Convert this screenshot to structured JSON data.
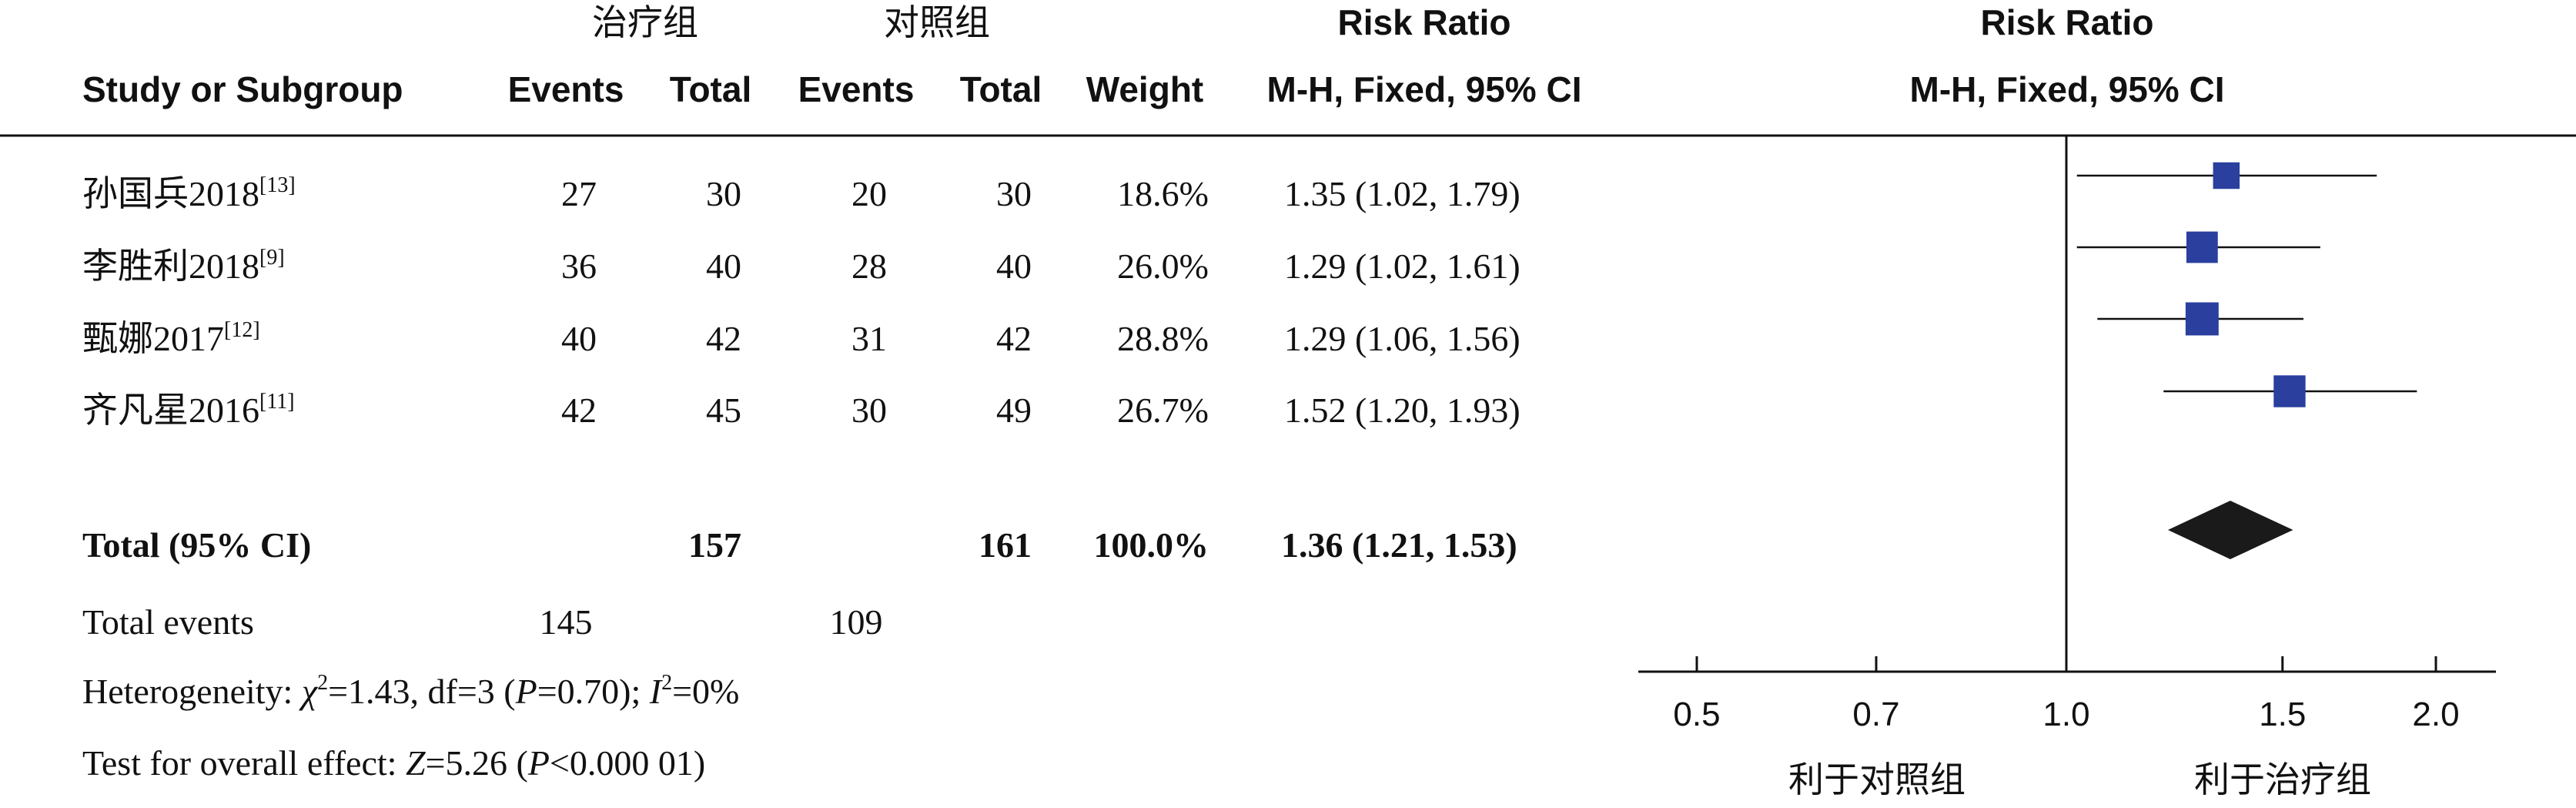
{
  "headers": {
    "group_treat": "治疗组",
    "group_control": "对照组",
    "risk_ratio_left": "Risk Ratio",
    "risk_ratio_right": "Risk Ratio",
    "study": "Study or Subgroup",
    "events1": "Events",
    "total1": "Total",
    "events2": "Events",
    "total2": "Total",
    "weight": "Weight",
    "method_left": "M-H, Fixed, 95% CI",
    "method_right": "M-H, Fixed, 95% CI"
  },
  "studies": [
    {
      "name": "孙国兵2018",
      "ref": "[13]",
      "e1": "27",
      "t1": "30",
      "e2": "20",
      "t2": "30",
      "weight": "18.6%",
      "ci_text": "1.35 (1.02, 1.79)"
    },
    {
      "name": "李胜利2018",
      "ref": "[9]",
      "e1": "36",
      "t1": "40",
      "e2": "28",
      "t2": "40",
      "weight": "26.0%",
      "ci_text": "1.29 (1.02, 1.61)"
    },
    {
      "name": "甄娜2017",
      "ref": "[12]",
      "e1": "40",
      "t1": "42",
      "e2": "31",
      "t2": "42",
      "weight": "28.8%",
      "ci_text": "1.29 (1.06, 1.56)"
    },
    {
      "name": "齐凡星2016",
      "ref": "[11]",
      "e1": "42",
      "t1": "45",
      "e2": "30",
      "t2": "49",
      "weight": "26.7%",
      "ci_text": "1.52 (1.20, 1.93)"
    }
  ],
  "total": {
    "label": "Total (95% CI)",
    "t1": "157",
    "t2": "161",
    "weight": "100.0%",
    "ci_text": "1.36 (1.21, 1.53)"
  },
  "total_events": {
    "label": "Total events",
    "e1": "145",
    "e2": "109"
  },
  "heterogeneity": {
    "prefix": "Heterogeneity: ",
    "chi_symbol": "χ",
    "chi_sup": "2",
    "chi_rest": "=1.43, df=3 (",
    "p_symbol": "P",
    "p_rest": "=0.70); ",
    "i_symbol": "I",
    "i_sup": "2",
    "i_rest": "=0%"
  },
  "overall_effect": {
    "prefix": "Test for overall effect: ",
    "z_symbol": "Z",
    "z_rest": "=5.26 (",
    "p_symbol": "P",
    "p_rest": "<0.000 01)"
  },
  "axis": {
    "favours_control": "利于对照组",
    "favours_treatment": "利于治疗组"
  },
  "colors": {
    "point": "#2a3f9e",
    "diamond": "#1a1a1a",
    "line": "#111111"
  },
  "chart_data": {
    "type": "forest",
    "ticks": [
      0.5,
      0.7,
      1.0,
      1.5,
      2.0
    ],
    "tick_labels": [
      "0.5",
      "0.7",
      "1.0",
      "1.5",
      "2.0"
    ],
    "null_value": 1.0,
    "studies": [
      {
        "name": "孙国兵2018",
        "rr": 1.35,
        "lower": 1.02,
        "upper": 1.79,
        "weight": 18.6
      },
      {
        "name": "李胜利2018",
        "rr": 1.29,
        "lower": 1.02,
        "upper": 1.61,
        "weight": 26.0
      },
      {
        "name": "甄娜2017",
        "rr": 1.29,
        "lower": 1.06,
        "upper": 1.56,
        "weight": 28.8
      },
      {
        "name": "齐凡星2016",
        "rr": 1.52,
        "lower": 1.2,
        "upper": 1.93,
        "weight": 26.7
      }
    ],
    "pooled": {
      "rr": 1.36,
      "lower": 1.21,
      "upper": 1.53
    }
  }
}
